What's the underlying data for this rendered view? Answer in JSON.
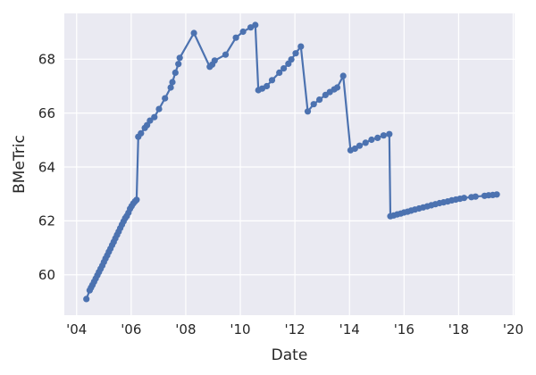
{
  "chart_data": {
    "type": "line",
    "title": "",
    "xlabel": "Date",
    "ylabel": "BMeTric",
    "legend": null,
    "grid": true,
    "style": "seaborn-darkgrid",
    "plot_bg": "#eaeaf2",
    "grid_color": "#ffffff",
    "line_color": "#4c72b0",
    "marker": "o",
    "text_color": "#262626",
    "xlim": [
      2003.55,
      2020.05
    ],
    "ylim": [
      58.5,
      69.7
    ],
    "xticks": [
      2004,
      2006,
      2008,
      2010,
      2012,
      2014,
      2016,
      2018,
      2020
    ],
    "xtick_labels": [
      "'04",
      "'06",
      "'08",
      "'10",
      "'12",
      "'14",
      "'16",
      "'18",
      "'20"
    ],
    "yticks": [
      60,
      62,
      64,
      66,
      68
    ],
    "ytick_labels": [
      "60",
      "62",
      "64",
      "66",
      "68"
    ],
    "series": [
      {
        "name": "BMeTric",
        "points": [
          [
            2004.36,
            59.1
          ],
          [
            2004.48,
            59.42
          ],
          [
            2004.53,
            59.52
          ],
          [
            2004.58,
            59.62
          ],
          [
            2004.64,
            59.74
          ],
          [
            2004.7,
            59.86
          ],
          [
            2004.76,
            59.98
          ],
          [
            2004.82,
            60.1
          ],
          [
            2004.88,
            60.22
          ],
          [
            2004.94,
            60.34
          ],
          [
            2005.0,
            60.47
          ],
          [
            2005.06,
            60.6
          ],
          [
            2005.12,
            60.72
          ],
          [
            2005.18,
            60.85
          ],
          [
            2005.24,
            60.97
          ],
          [
            2005.3,
            61.1
          ],
          [
            2005.36,
            61.22
          ],
          [
            2005.42,
            61.35
          ],
          [
            2005.48,
            61.48
          ],
          [
            2005.54,
            61.6
          ],
          [
            2005.6,
            61.73
          ],
          [
            2005.66,
            61.86
          ],
          [
            2005.72,
            61.98
          ],
          [
            2005.78,
            62.1
          ],
          [
            2005.84,
            62.18
          ],
          [
            2005.9,
            62.3
          ],
          [
            2005.96,
            62.45
          ],
          [
            2006.02,
            62.55
          ],
          [
            2006.08,
            62.65
          ],
          [
            2006.14,
            62.72
          ],
          [
            2006.2,
            62.78
          ],
          [
            2006.26,
            65.12
          ],
          [
            2006.36,
            65.25
          ],
          [
            2006.5,
            65.45
          ],
          [
            2006.58,
            65.55
          ],
          [
            2006.69,
            65.72
          ],
          [
            2006.85,
            65.85
          ],
          [
            2007.02,
            66.15
          ],
          [
            2007.24,
            66.55
          ],
          [
            2007.45,
            66.95
          ],
          [
            2007.51,
            67.15
          ],
          [
            2007.62,
            67.5
          ],
          [
            2007.73,
            67.82
          ],
          [
            2007.78,
            68.05
          ],
          [
            2008.3,
            68.97
          ],
          [
            2008.88,
            67.72
          ],
          [
            2008.97,
            67.8
          ],
          [
            2009.06,
            67.95
          ],
          [
            2009.46,
            68.17
          ],
          [
            2009.84,
            68.8
          ],
          [
            2010.1,
            69.02
          ],
          [
            2010.38,
            69.18
          ],
          [
            2010.55,
            69.27
          ],
          [
            2010.66,
            66.85
          ],
          [
            2010.8,
            66.91
          ],
          [
            2010.97,
            67.0
          ],
          [
            2011.16,
            67.22
          ],
          [
            2011.43,
            67.5
          ],
          [
            2011.59,
            67.66
          ],
          [
            2011.76,
            67.83
          ],
          [
            2011.87,
            67.99
          ],
          [
            2012.03,
            68.22
          ],
          [
            2012.22,
            68.47
          ],
          [
            2012.47,
            66.06
          ],
          [
            2012.69,
            66.33
          ],
          [
            2012.9,
            66.5
          ],
          [
            2013.12,
            66.67
          ],
          [
            2013.28,
            66.78
          ],
          [
            2013.44,
            66.88
          ],
          [
            2013.55,
            66.95
          ],
          [
            2013.77,
            67.38
          ],
          [
            2014.04,
            64.62
          ],
          [
            2014.2,
            64.68
          ],
          [
            2014.37,
            64.79
          ],
          [
            2014.59,
            64.9
          ],
          [
            2014.81,
            65.01
          ],
          [
            2015.03,
            65.08
          ],
          [
            2015.25,
            65.17
          ],
          [
            2015.46,
            65.22
          ],
          [
            2015.5,
            62.17
          ],
          [
            2015.62,
            62.2
          ],
          [
            2015.75,
            62.24
          ],
          [
            2015.88,
            62.27
          ],
          [
            2016.0,
            62.31
          ],
          [
            2016.13,
            62.34
          ],
          [
            2016.26,
            62.38
          ],
          [
            2016.4,
            62.42
          ],
          [
            2016.55,
            62.46
          ],
          [
            2016.7,
            62.5
          ],
          [
            2016.85,
            62.54
          ],
          [
            2017.0,
            62.58
          ],
          [
            2017.15,
            62.62
          ],
          [
            2017.3,
            62.66
          ],
          [
            2017.45,
            62.69
          ],
          [
            2017.6,
            62.72
          ],
          [
            2017.75,
            62.76
          ],
          [
            2017.9,
            62.79
          ],
          [
            2018.05,
            62.82
          ],
          [
            2018.2,
            62.85
          ],
          [
            2018.47,
            62.88
          ],
          [
            2018.62,
            62.9
          ],
          [
            2018.95,
            62.93
          ],
          [
            2019.1,
            62.95
          ],
          [
            2019.25,
            62.96
          ],
          [
            2019.4,
            62.98
          ]
        ]
      }
    ]
  }
}
